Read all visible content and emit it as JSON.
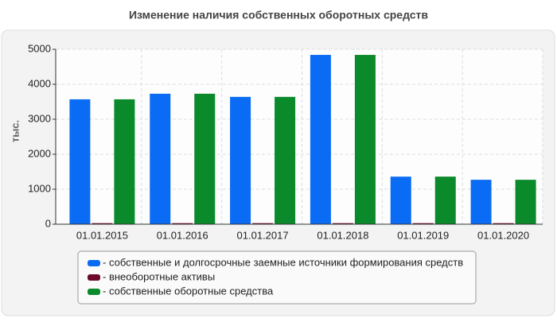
{
  "chart_data": {
    "type": "bar",
    "title": "Изменение наличия собственных оборотных средств",
    "y_label": "тыс.",
    "categories": [
      "01.01.2015",
      "01.01.2016",
      "01.01.2017",
      "01.01.2018",
      "01.01.2019",
      "01.01.2020"
    ],
    "series": [
      {
        "name": "- собственные и долгосрочные заемные источники формирования средств",
        "color": "#0a6cf5",
        "values": [
          3570,
          3730,
          3640,
          4840,
          1360,
          1270
        ]
      },
      {
        "name": "- внеоборотные активы",
        "color": "#6b0a2a",
        "values": [
          30,
          30,
          30,
          30,
          30,
          30
        ]
      },
      {
        "name": "- собственные оборотные средства",
        "color": "#0a8a2a",
        "values": [
          3570,
          3730,
          3640,
          4840,
          1360,
          1270
        ]
      }
    ],
    "ylim": [
      0,
      5000
    ],
    "yticks": [
      0,
      1000,
      2000,
      3000,
      4000,
      5000
    ],
    "grid": true
  }
}
